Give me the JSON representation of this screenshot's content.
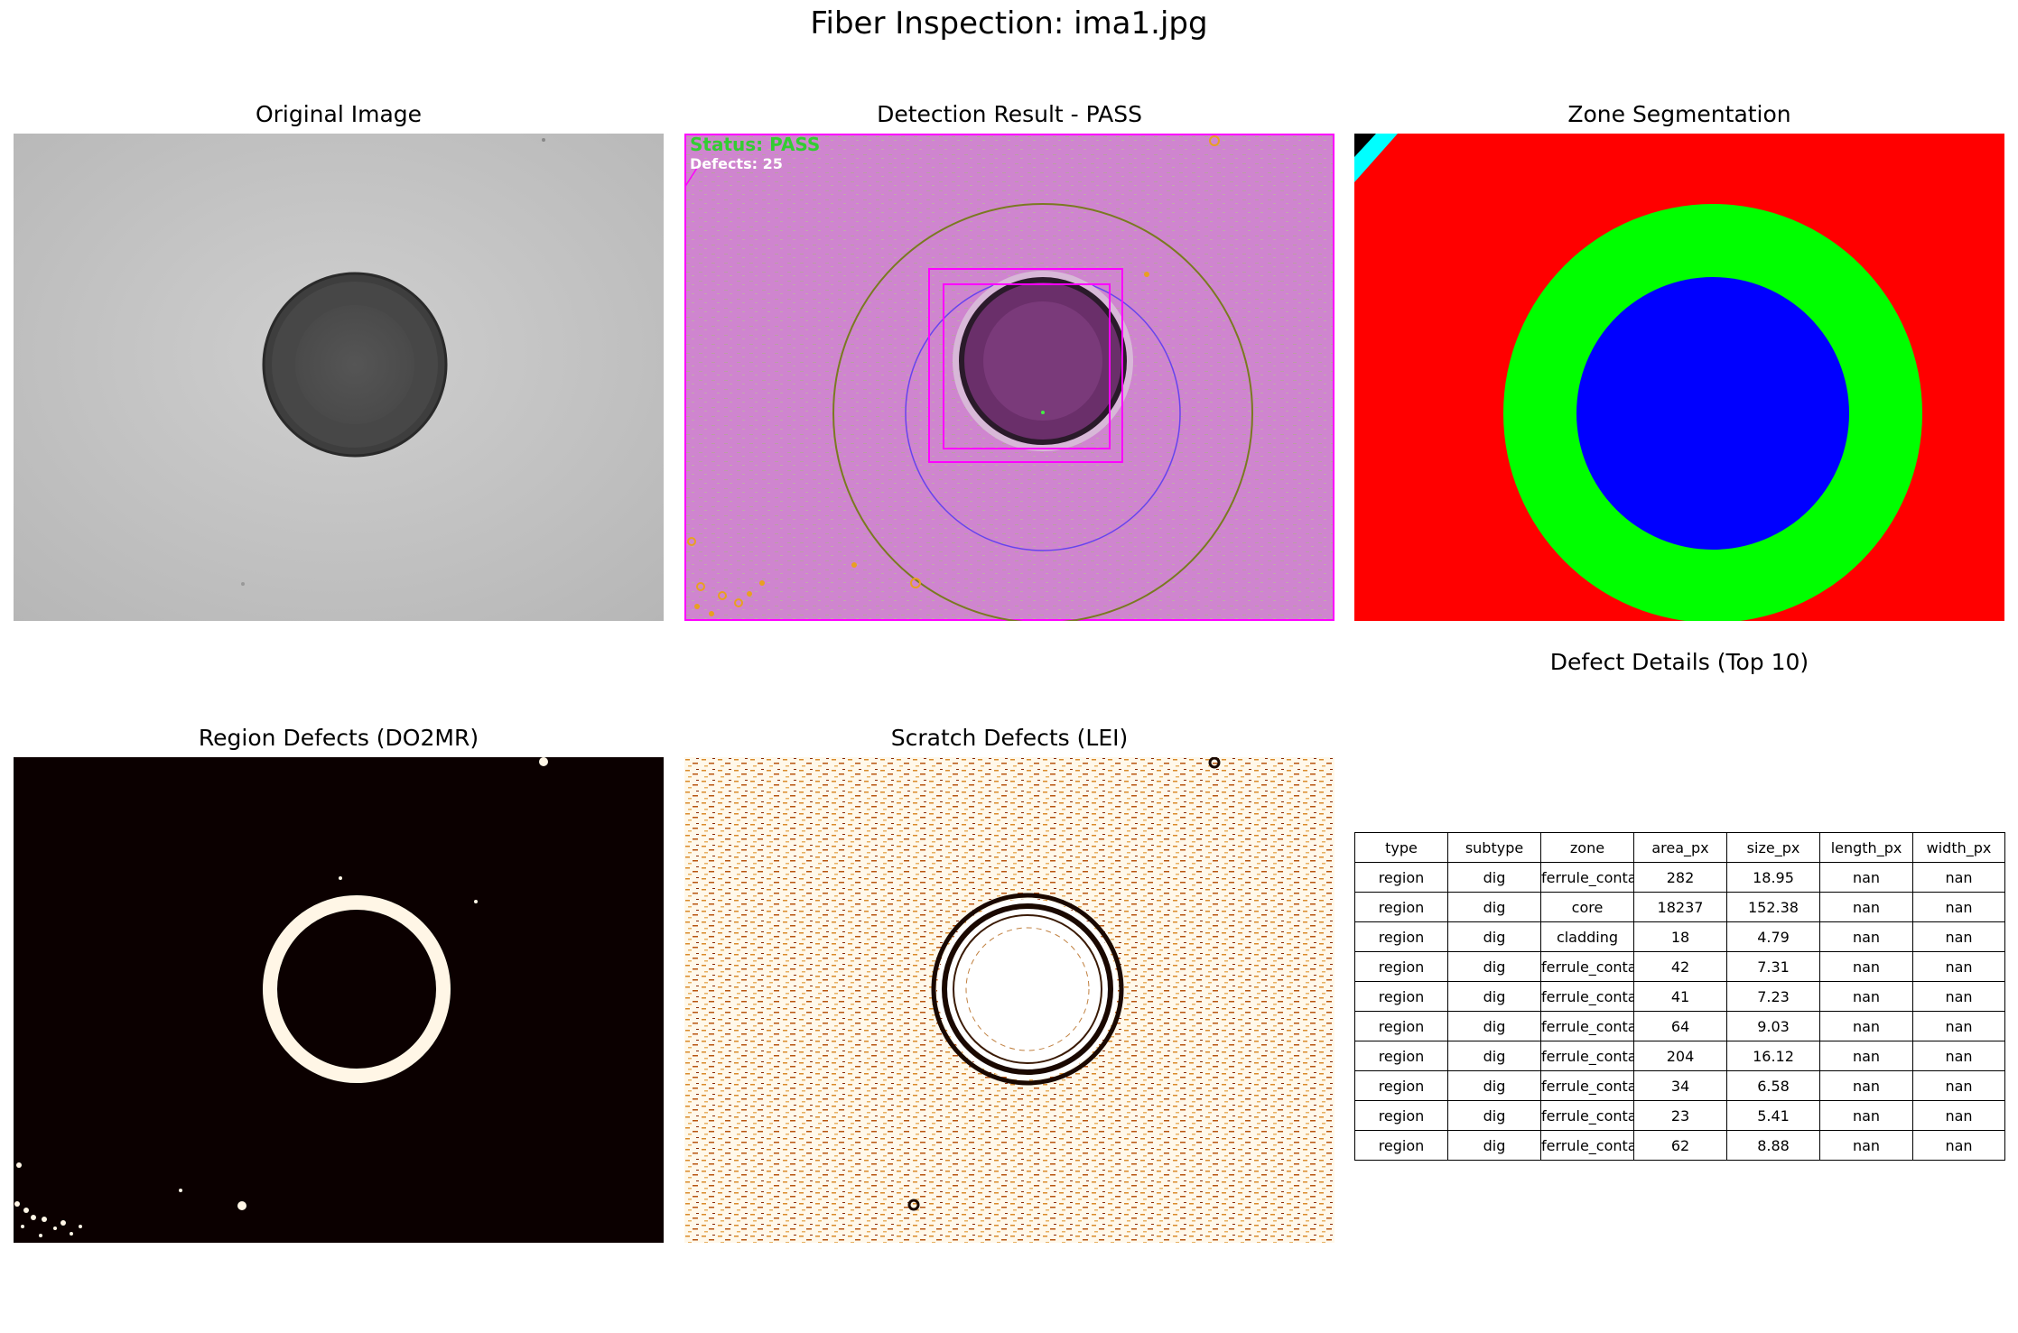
{
  "figure": {
    "title": "Fiber Inspection: ima1.jpg"
  },
  "panels": {
    "original": {
      "title": "Original Image"
    },
    "detection": {
      "title": "Detection Result - PASS",
      "status_text": "Status: PASS",
      "defects_text": "Defects: 25"
    },
    "zones": {
      "title": "Zone Segmentation"
    },
    "region": {
      "title": "Region Defects (DO2MR)"
    },
    "scratch": {
      "title": "Scratch Defects (LEI)"
    },
    "table": {
      "title": "Defect Details (Top 10)",
      "columns": [
        "type",
        "subtype",
        "zone",
        "area_px",
        "size_px",
        "length_px",
        "width_px"
      ],
      "rows": [
        [
          "region",
          "dig",
          "ferrule_contact",
          "282",
          "18.95",
          "nan",
          "nan"
        ],
        [
          "region",
          "dig",
          "core",
          "18237",
          "152.38",
          "nan",
          "nan"
        ],
        [
          "region",
          "dig",
          "cladding",
          "18",
          "4.79",
          "nan",
          "nan"
        ],
        [
          "region",
          "dig",
          "ferrule_contact",
          "42",
          "7.31",
          "nan",
          "nan"
        ],
        [
          "region",
          "dig",
          "ferrule_contact",
          "41",
          "7.23",
          "nan",
          "nan"
        ],
        [
          "region",
          "dig",
          "ferrule_contact",
          "64",
          "9.03",
          "nan",
          "nan"
        ],
        [
          "region",
          "dig",
          "ferrule_contact",
          "204",
          "16.12",
          "nan",
          "nan"
        ],
        [
          "region",
          "dig",
          "ferrule_contact",
          "34",
          "6.58",
          "nan",
          "nan"
        ],
        [
          "region",
          "dig",
          "ferrule_contact",
          "23",
          "5.41",
          "nan",
          "nan"
        ],
        [
          "region",
          "dig",
          "ferrule_contact",
          "62",
          "8.88",
          "nan",
          "nan"
        ]
      ]
    }
  },
  "colors": {
    "zone_ferrule": "#ff0000",
    "zone_cladding": "#00ff00",
    "zone_core": "#0000ff",
    "zone_adhesive": "#00ffff",
    "detection_overlay": "#cc88cc",
    "status_pass": "#33cc33",
    "bbox": "#ff00ff"
  }
}
